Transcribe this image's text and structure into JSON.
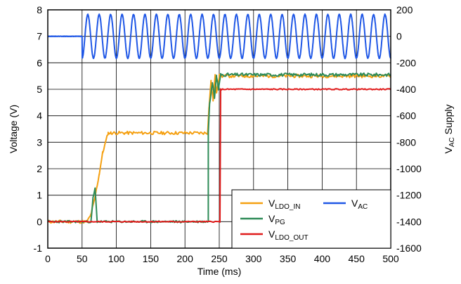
{
  "chart_data": {
    "type": "line",
    "xlabel": "Time (ms)",
    "ylabel_left": "Voltage (V)",
    "ylabel_right": {
      "main": "V",
      "sub": "AC",
      "rest": " Supply"
    },
    "xlim": [
      0,
      500
    ],
    "ylim_left": [
      -1,
      8
    ],
    "ylim_right": [
      -1600,
      200
    ],
    "grid": true,
    "legend_position": "bottom-right",
    "x_ticks": [
      "0",
      "50",
      "100",
      "150",
      "200",
      "250",
      "300",
      "350",
      "400",
      "450",
      "500"
    ],
    "y_left_ticks": [
      "-1",
      "0",
      "1",
      "2",
      "3",
      "4",
      "5",
      "6",
      "7",
      "8"
    ],
    "y_right_ticks": [
      "200",
      "0",
      "-200",
      "-400",
      "-600",
      "-800",
      "-1000",
      "-1200",
      "-1400",
      "-1600"
    ],
    "series": [
      {
        "key": "vac",
        "name": "V",
        "name_sub": "AC",
        "color": "#1f57e6",
        "axis": "right",
        "description": "flat at ~0 until 50 ms, then ~60 Hz sine with ~165 amplitude",
        "flat_until_ms": 50,
        "offset": 0,
        "amplitude": 165,
        "frequency_hz": 60
      },
      {
        "key": "vldo_in",
        "name": "V",
        "name_sub": "LDO_IN",
        "color": "#f5a011",
        "axis": "left",
        "x": [
          0,
          57,
          62,
          68,
          75,
          80,
          88,
          92,
          233,
          235,
          238,
          241,
          244,
          246,
          250,
          500
        ],
        "y": [
          0,
          0,
          0.2,
          0.8,
          1.8,
          2.6,
          3.35,
          3.35,
          3.35,
          4.3,
          5.3,
          4.6,
          5.5,
          4.9,
          5.5,
          5.5
        ]
      },
      {
        "key": "vpg",
        "name": "V",
        "name_sub": "PG",
        "color": "#2e8b57",
        "axis": "left",
        "x": [
          0,
          63,
          66,
          69,
          72,
          500
        ],
        "y": [
          0,
          0,
          0.9,
          1.25,
          0,
          0
        ],
        "x2": [
          234,
          236,
          240,
          243,
          246,
          249,
          252,
          500
        ],
        "y2": [
          3.4,
          4.5,
          5.2,
          4.7,
          5.5,
          5.0,
          5.55,
          5.55
        ]
      },
      {
        "key": "vldo_out",
        "name": "V",
        "name_sub": "LDO_OUT",
        "color": "#e01b1b",
        "axis": "left",
        "x": [
          0,
          251,
          252,
          500
        ],
        "y": [
          0,
          0,
          5.0,
          5.0
        ]
      }
    ]
  }
}
